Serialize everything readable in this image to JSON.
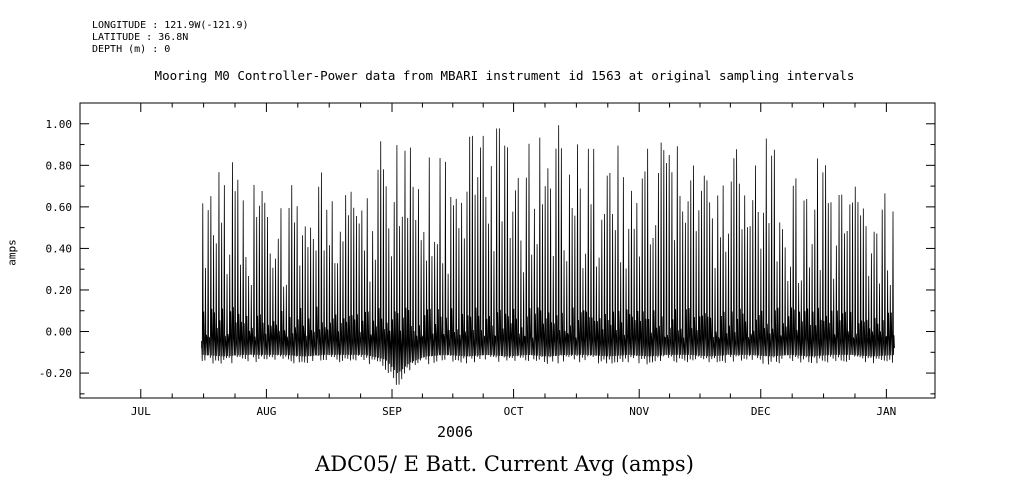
{
  "header": {
    "longitude": "LONGITUDE : 121.9W(-121.9)",
    "latitude": "LATITUDE : 36.8N",
    "depth": "DEPTH (m) : 0"
  },
  "footer": {
    "title": "ADC05/ E Batt. Current Avg (amps)"
  },
  "chart_data": {
    "type": "line",
    "title": "Mooring M0 Controller-Power data from MBARI instrument id 1563 at original sampling intervals",
    "ylabel": "amps",
    "year_label": "2006",
    "line_color": "#000000",
    "background_color": "#ffffff",
    "ylim": [
      -0.32,
      1.1
    ],
    "yticks": [
      -0.2,
      0.0,
      0.2,
      0.4,
      0.6,
      0.8,
      1.0
    ],
    "ytick_labels": [
      "-0.20",
      "0.00",
      "0.20",
      "0.40",
      "0.60",
      "0.80",
      "1.00"
    ],
    "x_months": [
      "JUL",
      "AUG",
      "SEP",
      "OCT",
      "NOV",
      "DEC",
      "JAN"
    ],
    "x_month_days": [
      0,
      31,
      62,
      92,
      123,
      153,
      184
    ],
    "xlim": [
      -15,
      196
    ],
    "data_start_day": 15,
    "data_end_day": 186,
    "baseline_amps": -0.08,
    "spikes_per_day": 1.5,
    "envelope_upper": {
      "days": [
        15,
        20,
        25,
        30,
        35,
        40,
        45,
        50,
        55,
        60,
        63,
        66,
        70,
        75,
        80,
        85,
        90,
        95,
        100,
        105,
        110,
        115,
        120,
        125,
        130,
        135,
        140,
        145,
        150,
        155,
        160,
        165,
        170,
        175,
        180,
        186
      ],
      "values": [
        0.62,
        0.88,
        0.75,
        0.7,
        0.66,
        0.82,
        0.8,
        0.72,
        0.62,
        1.05,
        0.95,
        0.9,
        0.88,
        0.85,
        0.95,
        1.0,
        1.02,
        0.92,
        1.05,
        0.95,
        0.9,
        0.95,
        0.85,
        0.92,
        0.95,
        0.88,
        0.75,
        0.9,
        0.85,
        0.95,
        0.7,
        0.88,
        0.8,
        0.72,
        0.68,
        0.7
      ]
    },
    "envelope_lower": {
      "days": [
        15,
        20,
        25,
        30,
        35,
        40,
        45,
        50,
        55,
        60,
        63,
        66,
        70,
        75,
        80,
        85,
        90,
        95,
        100,
        105,
        110,
        115,
        120,
        125,
        130,
        135,
        140,
        145,
        150,
        155,
        160,
        165,
        170,
        175,
        180,
        186
      ],
      "values": [
        -0.15,
        -0.16,
        -0.15,
        -0.15,
        -0.15,
        -0.16,
        -0.15,
        -0.15,
        -0.15,
        -0.18,
        -0.27,
        -0.2,
        -0.16,
        -0.15,
        -0.16,
        -0.15,
        -0.16,
        -0.15,
        -0.16,
        -0.15,
        -0.15,
        -0.16,
        -0.15,
        -0.16,
        -0.15,
        -0.15,
        -0.16,
        -0.15,
        -0.15,
        -0.16,
        -0.15,
        -0.16,
        -0.15,
        -0.15,
        -0.16,
        -0.15
      ]
    }
  }
}
